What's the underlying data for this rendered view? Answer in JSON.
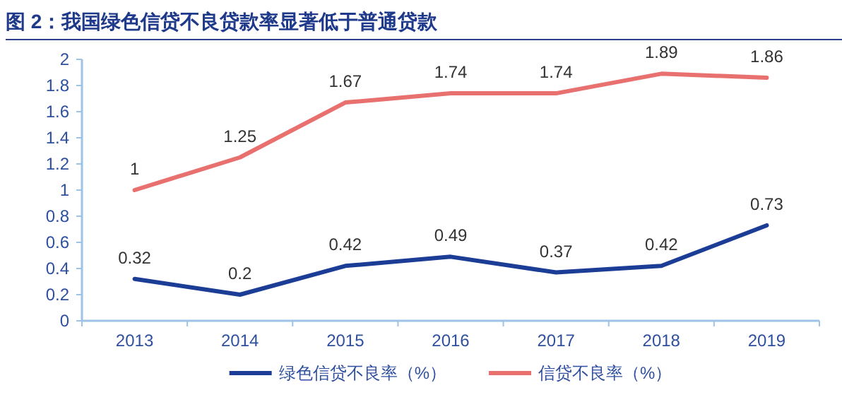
{
  "chart_data": {
    "type": "line",
    "title": "图 2：我国绿色信贷不良贷款率显著低于普通贷款",
    "categories": [
      "2013",
      "2014",
      "2015",
      "2016",
      "2017",
      "2018",
      "2019"
    ],
    "series": [
      {
        "name": "绿色信贷不良率（%）",
        "color": "#1b3d95",
        "values": [
          0.32,
          0.2,
          0.42,
          0.49,
          0.37,
          0.42,
          0.73
        ]
      },
      {
        "name": "信贷不良率（%）",
        "color": "#e8716f",
        "values": [
          1,
          1.25,
          1.67,
          1.74,
          1.74,
          1.89,
          1.86
        ]
      }
    ],
    "ylim": [
      0,
      2
    ],
    "yticks": [
      0,
      0.2,
      0.4,
      0.6,
      0.8,
      1,
      1.2,
      1.4,
      1.6,
      1.8,
      2
    ],
    "data_labels": true,
    "legend": "bottom",
    "grid": false,
    "marker": "none",
    "line_style": "solid"
  }
}
